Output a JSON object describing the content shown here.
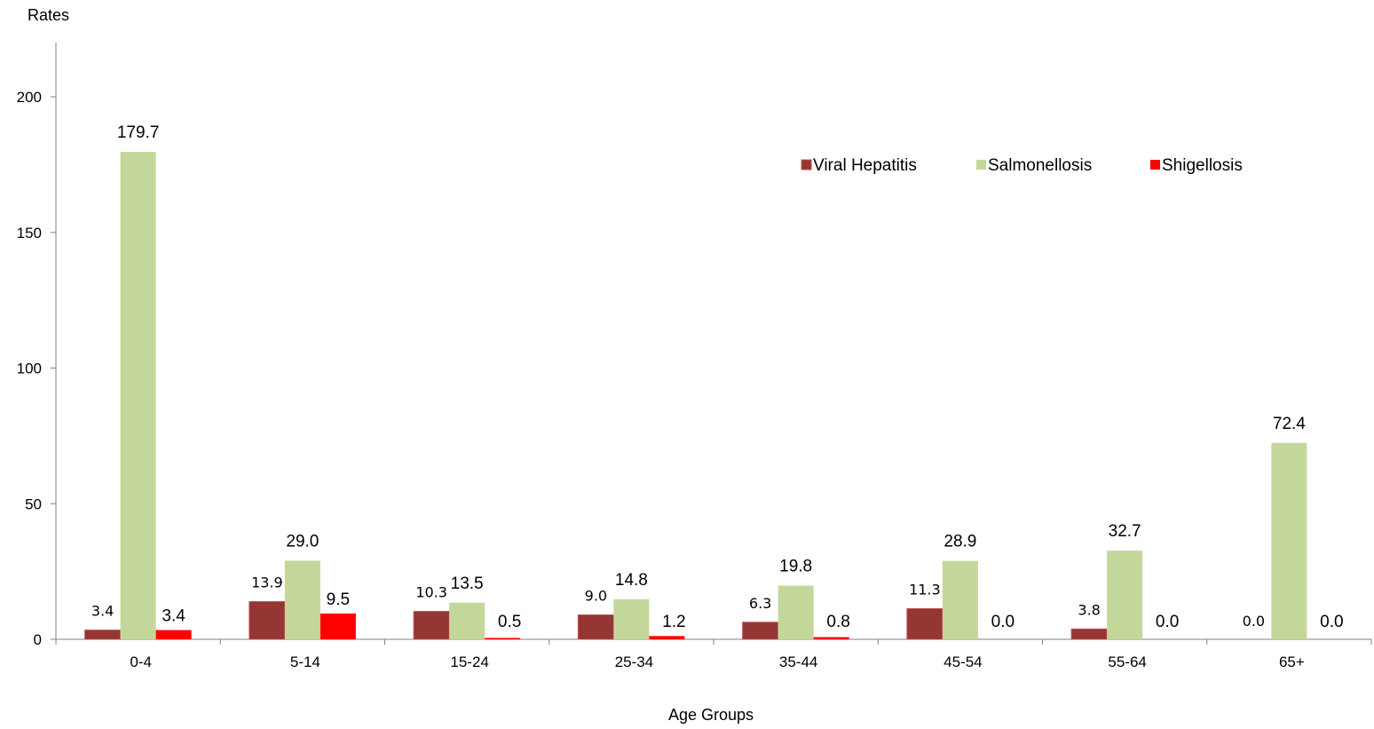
{
  "chart_data": {
    "type": "bar",
    "title": "",
    "xlabel": "Age Groups",
    "ylabel": "Rates",
    "ylim": [
      0,
      220
    ],
    "yticks": [
      "0",
      "50",
      "100",
      "150",
      "200"
    ],
    "ytick_values": [
      0,
      50,
      100,
      150,
      200
    ],
    "grid": false,
    "legend_position": "top-right",
    "categories": [
      "0-4",
      "5-14",
      "15-24",
      "25-34",
      "35-44",
      "45-54",
      "55-64",
      "65+"
    ],
    "series": [
      {
        "name": "Viral Hepatitis",
        "color": "#943634",
        "values": [
          3.4,
          13.9,
          10.3,
          9.0,
          6.3,
          11.3,
          3.8,
          0.0
        ],
        "labels": [
          "3.4",
          "13.9",
          "10.3",
          "9.0",
          "6.3",
          "11.3",
          "3.8",
          "0.0"
        ]
      },
      {
        "name": "Salmonellosis",
        "color": "#c4d79b",
        "values": [
          179.7,
          29.0,
          13.5,
          14.8,
          19.8,
          28.9,
          32.7,
          72.4
        ],
        "labels": [
          "179.7",
          "29.0",
          "13.5",
          "14.8",
          "19.8",
          "28.9",
          "32.7",
          "72.4"
        ]
      },
      {
        "name": "Shigellosis",
        "color": "#ff0000",
        "values": [
          3.4,
          9.5,
          0.5,
          1.2,
          0.8,
          0.0,
          0.0,
          0.0
        ],
        "labels": [
          "3.4",
          "9.5",
          "0.5",
          "1.2",
          "0.8",
          "0.0",
          "0.0",
          "0.0"
        ]
      }
    ]
  }
}
